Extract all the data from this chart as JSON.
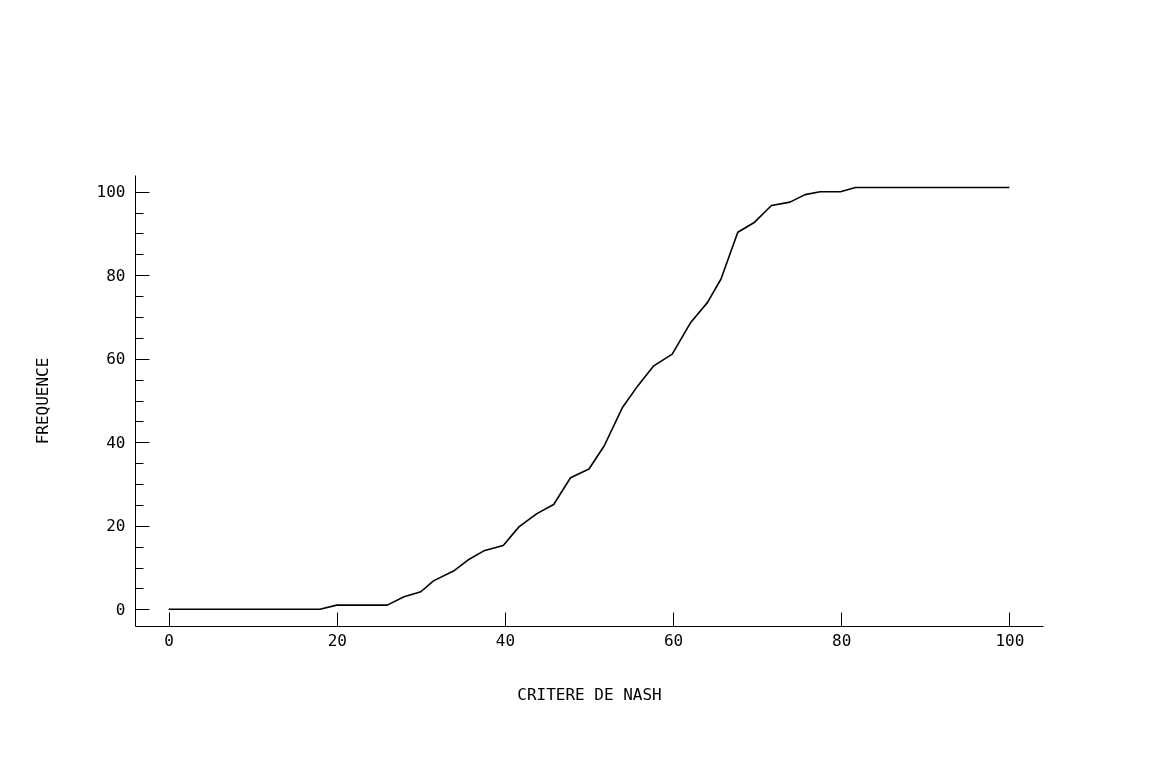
{
  "chart_data": {
    "type": "line",
    "xlabel": "CRITERE DE  NASH",
    "ylabel": "FREQUENCE",
    "x": [
      0,
      18,
      20,
      26,
      28,
      30,
      31.5,
      34,
      35.6,
      37.6,
      39.8,
      41.7,
      43.8,
      45.8,
      47.8,
      50,
      51.8,
      54,
      55.8,
      57.7,
      59.9,
      62.1,
      64.1,
      65.7,
      67.7,
      69.7,
      71.7,
      73.9,
      75.7,
      77.5,
      79.9,
      81.7,
      100
    ],
    "series": [
      {
        "color": "#000000",
        "values": [
          0,
          0,
          1,
          1,
          3,
          4.2,
          6.8,
          9.3,
          11.8,
          14.1,
          15.3,
          19.8,
          22.9,
          25.1,
          31.5,
          33.6,
          39.1,
          48.4,
          53.5,
          58.3,
          61.1,
          68.7,
          73.5,
          79.1,
          90.3,
          92.7,
          96.7,
          97.5,
          99.3,
          100,
          100,
          101,
          101
        ]
      }
    ],
    "xlim": [
      -4,
      104
    ],
    "ylim": [
      -4,
      104
    ],
    "xticks": [
      0,
      20,
      40,
      60,
      80,
      100
    ],
    "yticks": [
      0,
      {
        "value": 5,
        "label": null
      },
      {
        "value": 10,
        "label": null
      },
      {
        "value": 15,
        "label": null
      },
      20,
      {
        "value": 25,
        "label": null
      },
      {
        "value": 30,
        "label": null
      },
      {
        "value": 35,
        "label": null
      },
      40,
      {
        "value": 45,
        "label": null
      },
      {
        "value": 50,
        "label": null
      },
      {
        "value": 55,
        "label": null
      },
      60,
      {
        "value": 65,
        "label": null
      },
      {
        "value": 70,
        "label": null
      },
      {
        "value": 75,
        "label": null
      },
      80,
      {
        "value": 85,
        "label": null
      },
      {
        "value": 90,
        "label": null
      },
      {
        "value": 95,
        "label": null
      },
      100
    ],
    "grid": false,
    "marker": "none",
    "line_style": "solid"
  }
}
